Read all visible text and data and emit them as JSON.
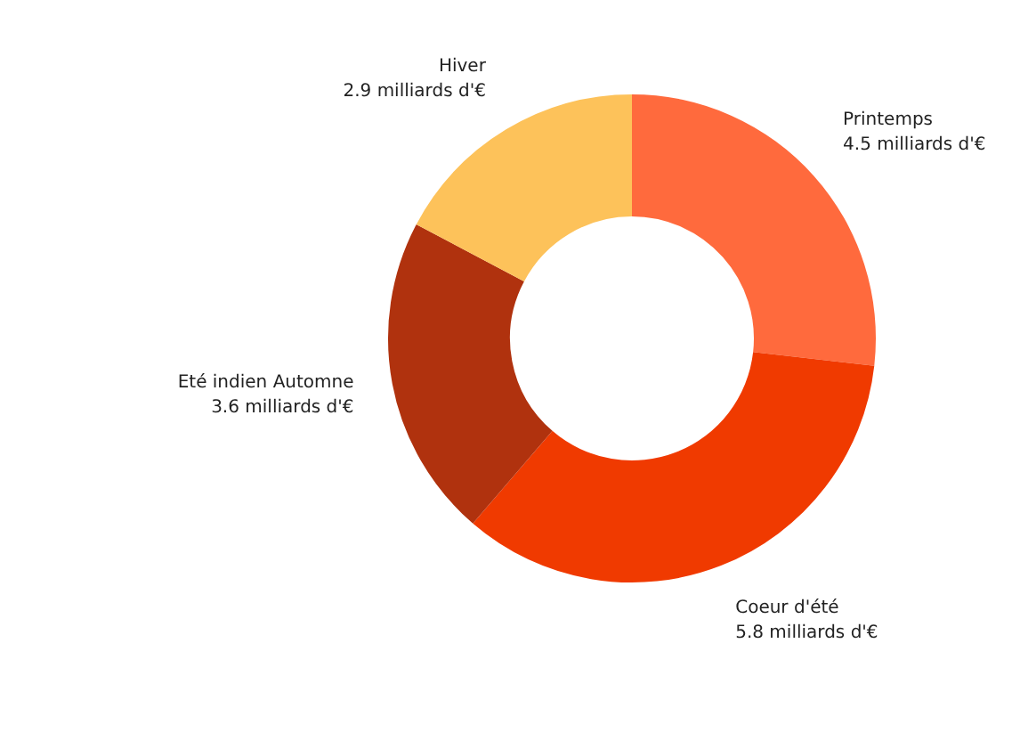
{
  "chart_data": {
    "type": "donut",
    "categories": [
      "Printemps",
      "Coeur d'été",
      "Eté indien Automne",
      "Hiver"
    ],
    "values": [
      4.5,
      5.8,
      3.6,
      2.9
    ],
    "value_labels": [
      "4.5 milliards d'€",
      "5.8 milliards d'€",
      "3.6 milliards d'€",
      "2.9 milliards d'€"
    ],
    "colors": [
      "#ff6a3d",
      "#f03a00",
      "#b0320e",
      "#fdc25a"
    ],
    "legend": false
  }
}
